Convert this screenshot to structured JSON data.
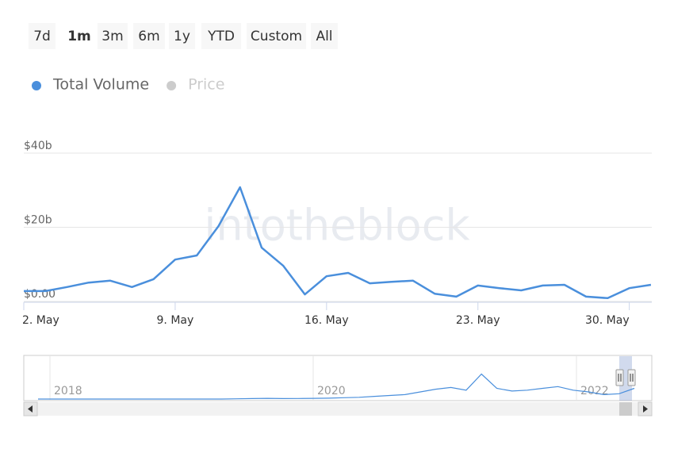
{
  "range_selector": {
    "buttons": [
      "7d",
      "1m",
      "3m",
      "6m",
      "1y",
      "YTD",
      "Custom",
      "All"
    ],
    "selected": "1m"
  },
  "watermark": "intotheblock",
  "chart_data": {
    "type": "line",
    "categories": [
      "2. May",
      null,
      null,
      null,
      null,
      null,
      null,
      "9. May",
      null,
      null,
      null,
      null,
      null,
      null,
      "16. May",
      null,
      null,
      null,
      null,
      null,
      null,
      "23. May",
      null,
      null,
      null,
      null,
      null,
      null,
      "30. May",
      null
    ],
    "series": [
      {
        "name": "Total Volume",
        "color": "#4a8fdc",
        "values": [
          2.8,
          2.8,
          3.9,
          5.1,
          5.6,
          3.9,
          6.0,
          11.3,
          12.4,
          20.3,
          30.8,
          14.5,
          9.6,
          1.9,
          6.8,
          7.7,
          4.9,
          5.3,
          5.6,
          2.1,
          1.3,
          4.3,
          3.6,
          3.0,
          4.3,
          4.5,
          1.3,
          0.9,
          3.6,
          4.5
        ]
      },
      {
        "name": "Price",
        "color": "#cccccc",
        "values": [
          null,
          null,
          null,
          null,
          null,
          null,
          null,
          null,
          null,
          null,
          null,
          null,
          null,
          null,
          null,
          null,
          null,
          null,
          null,
          null,
          null,
          null,
          null,
          null,
          null,
          null,
          null,
          null,
          null,
          null
        ]
      }
    ],
    "ylim": [
      0,
      40
    ],
    "yticks": [
      {
        "value": 0,
        "label": "$0.00"
      },
      {
        "value": 20,
        "label": "$20b"
      },
      {
        "value": 40,
        "label": "$40b"
      }
    ],
    "grid": true
  },
  "navigator": {
    "labels": [
      "2018",
      "2020",
      "2022"
    ],
    "ylim": [
      0,
      40
    ],
    "values": [
      0,
      0,
      0,
      0,
      0,
      0,
      0,
      0,
      0,
      0,
      0,
      0,
      0,
      0.3,
      0.5,
      0.8,
      0.5,
      0.6,
      0.8,
      1,
      1.5,
      2,
      3,
      4,
      5,
      8,
      11,
      13,
      10,
      28,
      12,
      9,
      10,
      12,
      14,
      10,
      8,
      5,
      6,
      12
    ]
  }
}
